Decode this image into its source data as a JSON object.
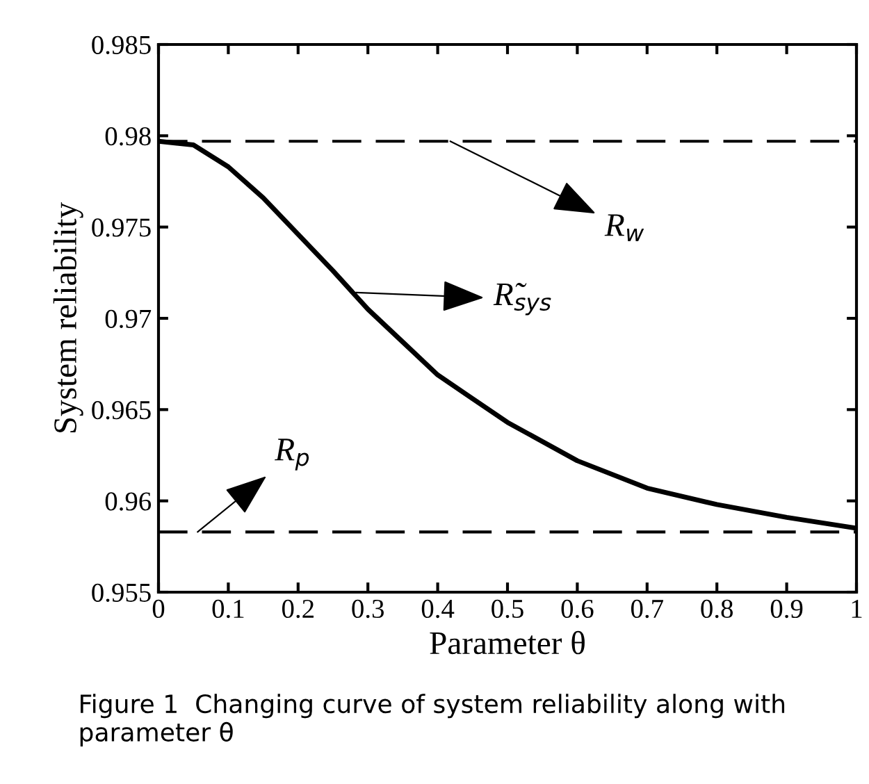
{
  "chart_data": {
    "type": "line",
    "xlabel": "Parameter θ",
    "ylabel": "System reliability",
    "x": [
      0,
      0.05,
      0.1,
      0.15,
      0.2,
      0.25,
      0.3,
      0.35,
      0.4,
      0.45,
      0.5,
      0.6,
      0.7,
      0.8,
      0.9,
      1.0
    ],
    "series": [
      {
        "color": "#000000",
        "values": [
          0.9797,
          0.9795,
          0.9783,
          0.9766,
          0.9746,
          0.9726,
          0.9705,
          0.9687,
          0.9669,
          0.9656,
          0.9643,
          0.9622,
          0.9607,
          0.9598,
          0.9591,
          0.9585
        ]
      }
    ],
    "ref_lines": [
      {
        "axis": "y",
        "value": 0.9797,
        "color": "#000000",
        "line_style": "dashed"
      },
      {
        "axis": "y",
        "value": 0.9583,
        "color": "#000000",
        "line_style": "dashed"
      }
    ],
    "annotations": [
      {
        "text": "R$_{w}$",
        "x": 0.418,
        "y": 0.9797
      },
      {
        "text": "R$_{p}$",
        "x": 0.056,
        "y": 0.9583
      },
      "R̃$_{sys}$",
      "Figure 1  Changing curve of system reliability along with parameter θ"
    ],
    "xlim": [
      0,
      1
    ],
    "xticks": [
      0,
      0.1,
      0.2,
      0.3,
      0.4,
      0.5,
      0.6,
      0.7,
      0.8,
      0.9,
      1
    ],
    "ylim": [
      0.955,
      0.985
    ],
    "yticks": [
      0.955,
      0.96,
      0.965,
      0.97,
      0.975,
      0.98,
      0.985
    ],
    "grid": false,
    "legend": false,
    "marker": "none",
    "line_style": "solid"
  }
}
